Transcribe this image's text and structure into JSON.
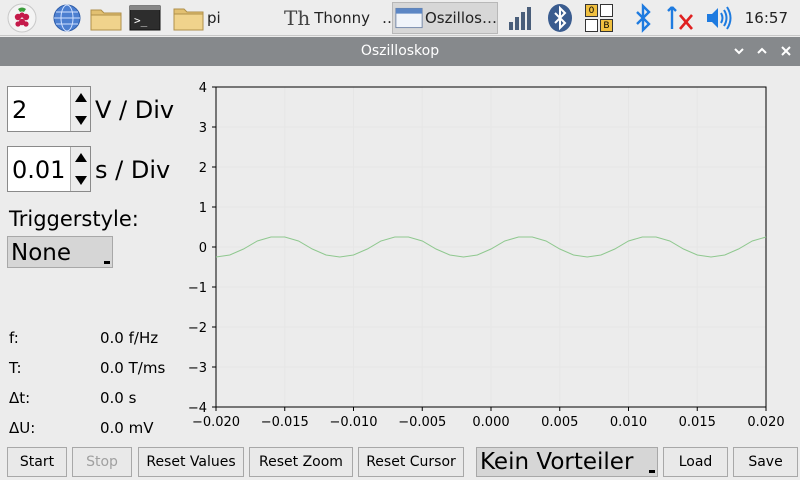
{
  "taskbar": {
    "folder_label": "pi",
    "thonny_label": "Thonny",
    "thonny_ellipsis": "…",
    "oszi_label": "Oszillos…",
    "clock": "16:57",
    "bt_letters": [
      "0",
      "B"
    ]
  },
  "window": {
    "title": "Oszilloskop"
  },
  "controls": {
    "vdiv": {
      "value": "2",
      "unit": "V / Div"
    },
    "sdiv": {
      "value": "0.01",
      "unit": "s / Div"
    },
    "trigger_label": "Triggerstyle:",
    "trigger_value": "None"
  },
  "measurements": [
    {
      "label": "f:",
      "value": "0.0 f/Hz"
    },
    {
      "label": "T:",
      "value": "0.0 T/ms"
    },
    {
      "label": "Δt:",
      "value": "0.0 s"
    },
    {
      "label": "ΔU:",
      "value": "0.0 mV"
    }
  ],
  "buttons": {
    "start": "Start",
    "stop": "Stop",
    "reset_values": "Reset Values",
    "reset_zoom": "Reset Zoom",
    "reset_cursor": "Reset Cursor",
    "divider": "Kein Vorteiler",
    "load": "Load",
    "save": "Save"
  },
  "chart_data": {
    "type": "line",
    "xlim": [
      -0.02,
      0.02
    ],
    "ylim": [
      -4,
      4
    ],
    "x_ticks": [
      "−0.020",
      "−0.015",
      "−0.010",
      "−0.005",
      "0.000",
      "0.005",
      "0.010",
      "0.015",
      "0.020"
    ],
    "y_ticks": [
      "4",
      "3",
      "2",
      "1",
      "0",
      "−1",
      "−2",
      "−3",
      "−4"
    ],
    "grid": true,
    "series": [
      {
        "color": "#8fc88f",
        "x": [
          -0.02,
          -0.019,
          -0.018,
          -0.017,
          -0.016,
          -0.015,
          -0.014,
          -0.013,
          -0.012,
          -0.011,
          -0.01,
          -0.009,
          -0.008,
          -0.007,
          -0.006,
          -0.005,
          -0.004,
          -0.003,
          -0.002,
          -0.001,
          0.0,
          0.001,
          0.002,
          0.003,
          0.004,
          0.005,
          0.006,
          0.007,
          0.008,
          0.009,
          0.01,
          0.011,
          0.012,
          0.013,
          0.014,
          0.015,
          0.016,
          0.017,
          0.018,
          0.019,
          0.02
        ],
        "y": [
          -0.25,
          -0.2,
          -0.05,
          0.15,
          0.25,
          0.25,
          0.15,
          -0.05,
          -0.2,
          -0.25,
          -0.2,
          -0.05,
          0.15,
          0.25,
          0.25,
          0.15,
          -0.05,
          -0.2,
          -0.25,
          -0.2,
          -0.05,
          0.15,
          0.25,
          0.25,
          0.15,
          -0.05,
          -0.2,
          -0.25,
          -0.2,
          -0.05,
          0.15,
          0.25,
          0.25,
          0.15,
          -0.05,
          -0.2,
          -0.25,
          -0.2,
          -0.05,
          0.15,
          0.25
        ]
      }
    ]
  }
}
